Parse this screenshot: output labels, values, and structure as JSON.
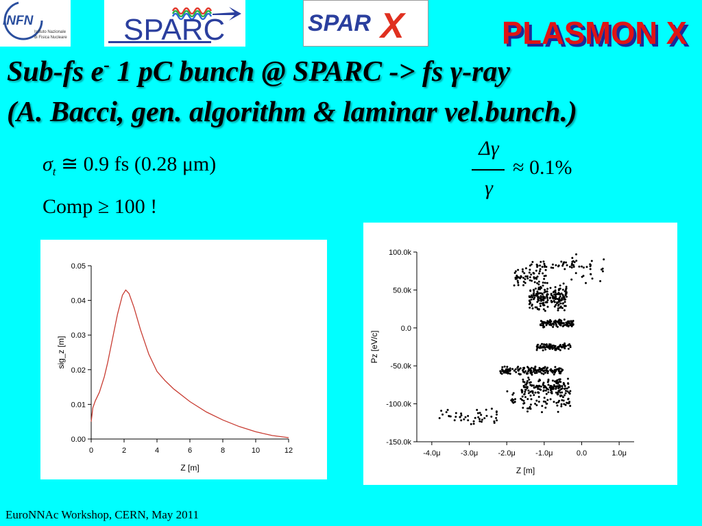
{
  "logos": {
    "infn_text": "INFN",
    "infn_sub1": "Istituto Nazionale",
    "infn_sub2": "di Fisica Nucleare",
    "sparc_text": "SPARC",
    "sparx_text": "SPAR",
    "sparx_x": "X",
    "plasmon_text": "PLASMON X"
  },
  "title": {
    "line1_pre": "Sub-fs e",
    "line1_sup": "-",
    "line1_post": " 1 pC bunch @ SPARC -> fs γ-ray",
    "line2": "(A. Bacci, gen. algorithm & laminar vel.bunch.)"
  },
  "formulas": {
    "sigma": "σ",
    "sigma_sub": "t",
    "sigma_rest": " ≅ 0.9   fs  (0.28  μm)",
    "comp": "Comp ≥ 100  !",
    "delta_num": "Δγ",
    "delta_den": "γ",
    "delta_rest": "≈ 0.1%"
  },
  "colors": {
    "background": "#00ffff",
    "curve": "#c83c32",
    "points": "#000000"
  },
  "chart_data": [
    {
      "type": "line",
      "xlabel": "Z [m]",
      "ylabel": "sig_z [m]",
      "xlim": [
        0,
        12
      ],
      "ylim": [
        0,
        0.05
      ],
      "xticks": [
        "0",
        "2",
        "4",
        "6",
        "8",
        "10",
        "12"
      ],
      "yticks": [
        "0.00",
        "0.01",
        "0.02",
        "0.03",
        "0.04",
        "0.05"
      ],
      "series": [
        {
          "x": [
            0,
            0.1,
            0.25,
            0.5,
            0.8,
            1.0,
            1.3,
            1.6,
            1.9,
            2.1,
            2.3,
            2.6,
            3.0,
            3.5,
            4.0,
            4.5,
            5.0,
            6.0,
            7.0,
            8.0,
            9.0,
            10.0,
            11.0,
            12.0
          ],
          "y": [
            0.005,
            0.009,
            0.011,
            0.0135,
            0.018,
            0.022,
            0.029,
            0.036,
            0.0415,
            0.043,
            0.042,
            0.038,
            0.0315,
            0.0245,
            0.0195,
            0.0168,
            0.0145,
            0.0108,
            0.0078,
            0.0055,
            0.0036,
            0.0021,
            0.001,
            0.0004
          ]
        }
      ]
    },
    {
      "type": "scatter",
      "xlabel": "Z [m]",
      "ylabel": "Pz [eV/c]",
      "xlim": [
        -4.4,
        1.4
      ],
      "ylim": [
        -150,
        100
      ],
      "xticks": [
        "-4.0μ",
        "-3.0μ",
        "-2.0μ",
        "-1.0μ",
        "0.0",
        "1.0μ"
      ],
      "xtick_values": [
        -4,
        -3,
        -2,
        -1,
        0,
        1
      ],
      "yticks": [
        "100.0k",
        "50.0k",
        "0.0",
        "-50.0k",
        "-100.0k",
        "-150.0k"
      ],
      "ytick_values": [
        100,
        50,
        0,
        -50,
        -100,
        -150
      ],
      "scatter_clusters": [
        {
          "x": [
            -1.4,
            -0.4
          ],
          "y": [
            20,
            60
          ],
          "n": 200
        },
        {
          "x": [
            -1.5,
            -0.1
          ],
          "y": [
            75,
            90
          ],
          "n": 40
        },
        {
          "x": [
            -1.8,
            -0.9
          ],
          "y": [
            55,
            80
          ],
          "n": 60
        },
        {
          "x": [
            -1.1,
            -0.2
          ],
          "y": [
            0,
            12
          ],
          "n": 110
        },
        {
          "x": [
            -1.2,
            -0.3
          ],
          "y": [
            -30,
            -20
          ],
          "n": 90
        },
        {
          "x": [
            -2.2,
            -0.5
          ],
          "y": [
            -62,
            -50
          ],
          "n": 150
        },
        {
          "x": [
            -1.6,
            -0.3
          ],
          "y": [
            -90,
            -65
          ],
          "n": 130
        },
        {
          "x": [
            -2.0,
            -0.3
          ],
          "y": [
            -115,
            -75
          ],
          "n": 90
        },
        {
          "x": [
            -3.8,
            -2.2
          ],
          "y": [
            -130,
            -105
          ],
          "n": 45
        },
        {
          "x": [
            -0.4,
            0.6
          ],
          "y": [
            50,
            100
          ],
          "n": 25
        }
      ]
    }
  ],
  "footer": "EuroNNAc Workshop, CERN, May 2011"
}
